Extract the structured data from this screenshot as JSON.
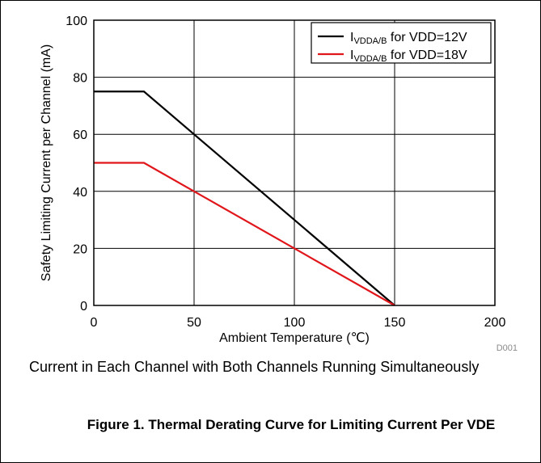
{
  "chart_data": {
    "type": "line",
    "xlabel": "Ambient Temperature (℃)",
    "ylabel": "Safety Limiting Current per Channel (mA)",
    "xlim": [
      0,
      200
    ],
    "ylim": [
      0,
      100
    ],
    "x_ticks": [
      "0",
      "50",
      "100",
      "150",
      "200"
    ],
    "y_ticks": [
      "0",
      "20",
      "40",
      "60",
      "80",
      "100"
    ],
    "grid": true,
    "legend_position": "top-right",
    "series": [
      {
        "name_main": "I",
        "name_sub": "VDDA/B",
        "name_rest": " for VDD=12V",
        "color": "#000000",
        "points": [
          [
            0,
            75
          ],
          [
            25,
            75
          ],
          [
            150,
            0
          ]
        ]
      },
      {
        "name_main": "I",
        "name_sub": "VDDA/B",
        "name_rest": " for VDD=18V",
        "color": "#e0161b",
        "points": [
          [
            0,
            50
          ],
          [
            25,
            50
          ],
          [
            150,
            0
          ]
        ]
      }
    ],
    "annotation": "D001"
  },
  "note": "Current in Each Channel with Both Channels Running Simultaneously",
  "caption": "Figure 1. Thermal Derating Curve for Limiting Current Per VDE"
}
